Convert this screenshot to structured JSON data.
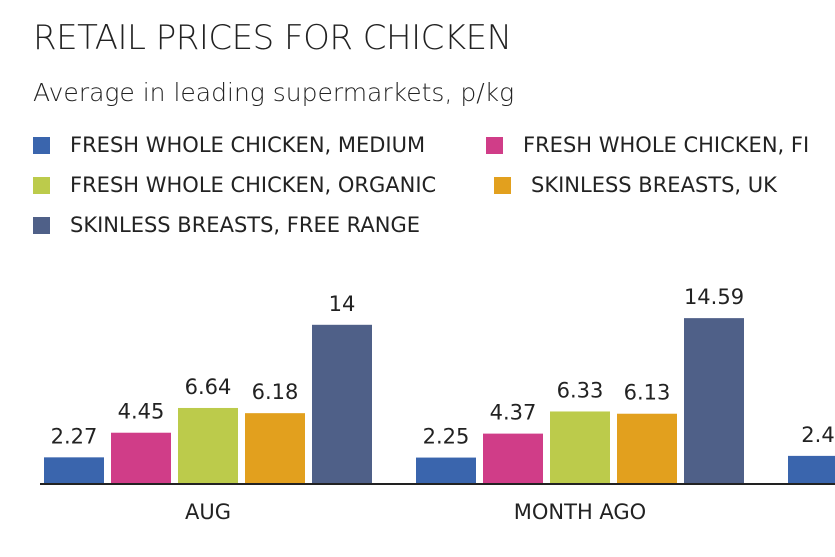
{
  "chart_data": {
    "type": "bar",
    "title": "RETAIL PRICES FOR CHICKEN",
    "subtitle": "Average in leading supermarkets, p/kg",
    "xlabel": "",
    "ylabel": "p/kg",
    "categories": [
      "AUG",
      "MONTH AGO",
      ""
    ],
    "legend_position": "top-left",
    "grid": false,
    "series": [
      {
        "name": "FRESH WHOLE CHICKEN, MEDIUM",
        "color": "#3a65ad",
        "values": [
          2.27,
          2.25,
          2.4
        ]
      },
      {
        "name": "FRESH WHOLE CHICKEN, FI",
        "color": "#d03d88",
        "values": [
          4.45,
          4.37,
          null
        ]
      },
      {
        "name": "FRESH WHOLE CHICKEN, ORGANIC",
        "color": "#bccb4b",
        "values": [
          6.64,
          6.33,
          null
        ]
      },
      {
        "name": "SKINLESS BREASTS, UK",
        "color": "#e2a01e",
        "values": [
          6.18,
          6.13,
          null
        ]
      },
      {
        "name": "SKINLESS BREASTS, FREE RANGE",
        "color": "#4f6088",
        "values": [
          14,
          14.59,
          null
        ]
      }
    ],
    "data_labels": [
      [
        "2.27",
        "4.45",
        "6.64",
        "6.18",
        "14"
      ],
      [
        "2.25",
        "4.37",
        "6.33",
        "6.13",
        "14.59"
      ],
      [
        "2.4"
      ]
    ],
    "ylim": [
      0,
      16
    ]
  }
}
